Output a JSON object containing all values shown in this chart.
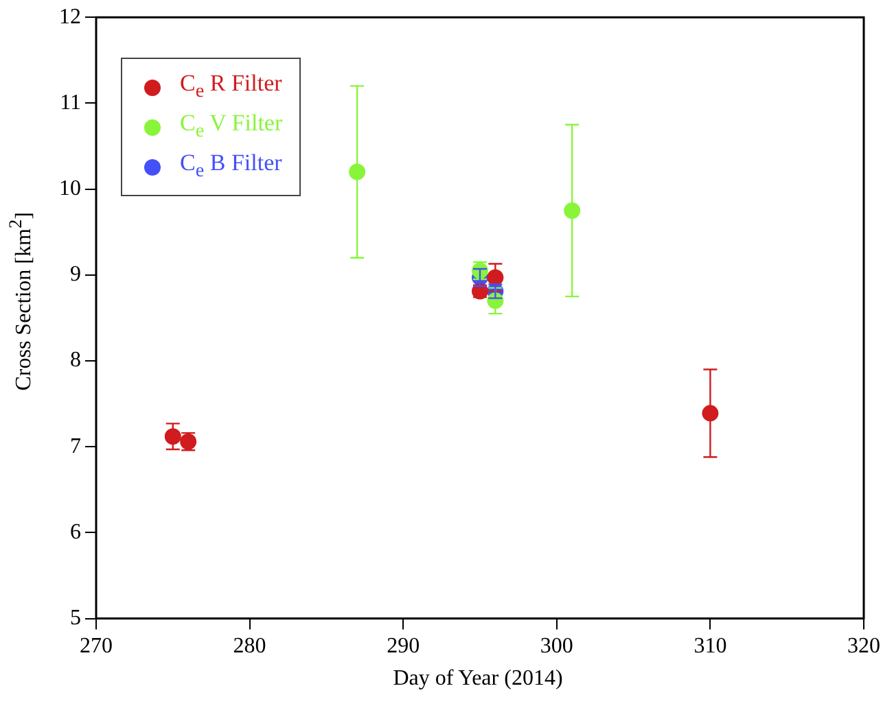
{
  "chart_data": {
    "type": "scatter",
    "xlabel": "Day of Year (2014)",
    "ylabel": "Cross Section [km$^{2}$]",
    "xlim": [
      270,
      320
    ],
    "xticks": [
      270,
      280,
      290,
      300,
      310,
      320
    ],
    "ylim": [
      5,
      12
    ],
    "yticks": [
      5,
      6,
      7,
      8,
      9,
      10,
      11,
      12
    ],
    "legend": "top left",
    "marker": "circle",
    "grid": false,
    "series": [
      {
        "name": "C$_{e}$ R Filter",
        "color": "#d01c1f",
        "x": [
          275,
          276,
          295,
          296,
          310
        ],
        "values": [
          7.12,
          7.06,
          8.81,
          8.97,
          7.39
        ],
        "errors": [
          0.15,
          0.1,
          0.07,
          0.16,
          0.51
        ]
      },
      {
        "name": "C$_{e}$ V Filter",
        "color": "#88f53a",
        "x": [
          287,
          295,
          296,
          301
        ],
        "values": [
          10.2,
          9.05,
          8.7,
          9.75
        ],
        "errors": [
          1.0,
          0.1,
          0.15,
          1.0
        ]
      },
      {
        "name": "C$_{e}$ B Filter",
        "color": "#4450f8",
        "x": [
          295,
          296
        ],
        "values": [
          8.97,
          8.81
        ],
        "errors": [
          0.1,
          0.08
        ]
      }
    ]
  }
}
